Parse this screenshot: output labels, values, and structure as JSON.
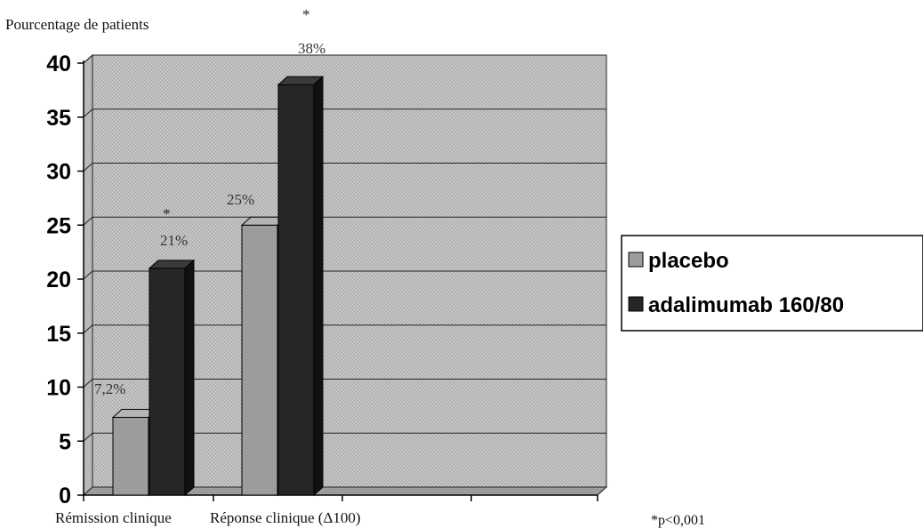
{
  "chart_data": {
    "type": "bar",
    "ylabel": "Pourcentage de patients",
    "categories": [
      "Rémission clinique",
      "Réponse clinique (Δ100)"
    ],
    "series": [
      {
        "name": "placebo",
        "values": [
          7.2,
          25
        ],
        "labels": [
          "7,2%",
          "25%"
        ]
      },
      {
        "name": "adalimumab 160/80",
        "values": [
          21,
          38
        ],
        "labels": [
          "21%",
          "38%"
        ],
        "significance": [
          "*",
          "*"
        ]
      }
    ],
    "ylim": [
      0,
      40
    ],
    "yticks": [
      0,
      5,
      10,
      15,
      20,
      25,
      30,
      35,
      40
    ],
    "grid": true,
    "legend_position": "right",
    "footnote": "*p<0,001",
    "colors": {
      "placebo": "#9a9a9a",
      "adalimumab": "#262626",
      "wall": "#bdbdbd",
      "floor": "#9c9c9c"
    }
  }
}
